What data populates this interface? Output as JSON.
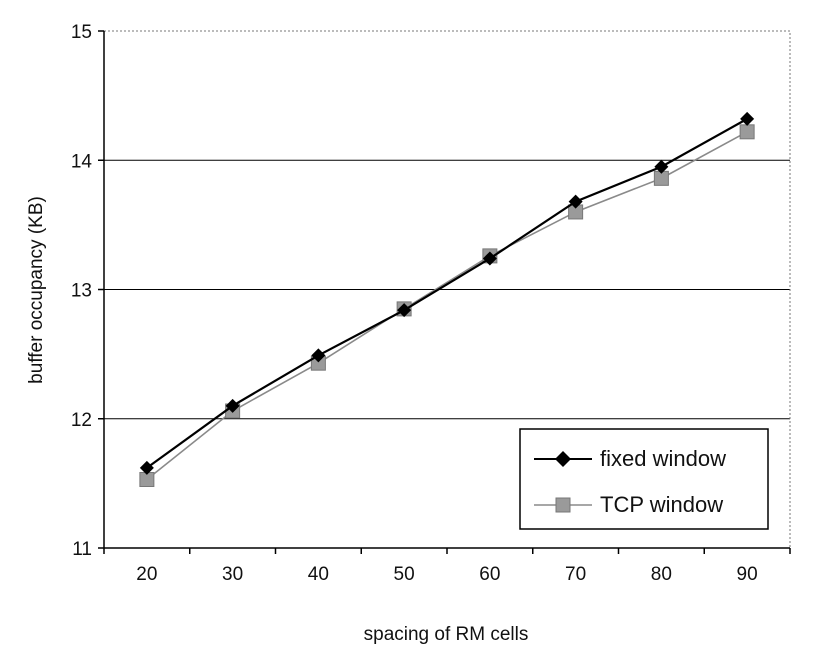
{
  "chart_data": {
    "type": "line",
    "title": "",
    "xlabel": "spacing of RM cells",
    "ylabel": "buffer occupancy (KB)",
    "categories": [
      "20",
      "30",
      "40",
      "50",
      "60",
      "70",
      "80",
      "90"
    ],
    "x": [
      20,
      30,
      40,
      50,
      60,
      70,
      80,
      90
    ],
    "ylim": [
      11,
      15
    ],
    "yticks": [
      "11",
      "12",
      "13",
      "14",
      "15"
    ],
    "grid": "horizontal",
    "legend_position": "bottom-right",
    "series": [
      {
        "name": "fixed window",
        "values": [
          11.62,
          12.1,
          12.49,
          12.84,
          13.24,
          13.68,
          13.95,
          14.32
        ],
        "color": "#000000",
        "marker": "diamond"
      },
      {
        "name": "TCP window",
        "values": [
          11.53,
          12.06,
          12.43,
          12.85,
          13.26,
          13.6,
          13.86,
          14.22
        ],
        "color": "#8a8a8a",
        "marker": "square"
      }
    ]
  }
}
